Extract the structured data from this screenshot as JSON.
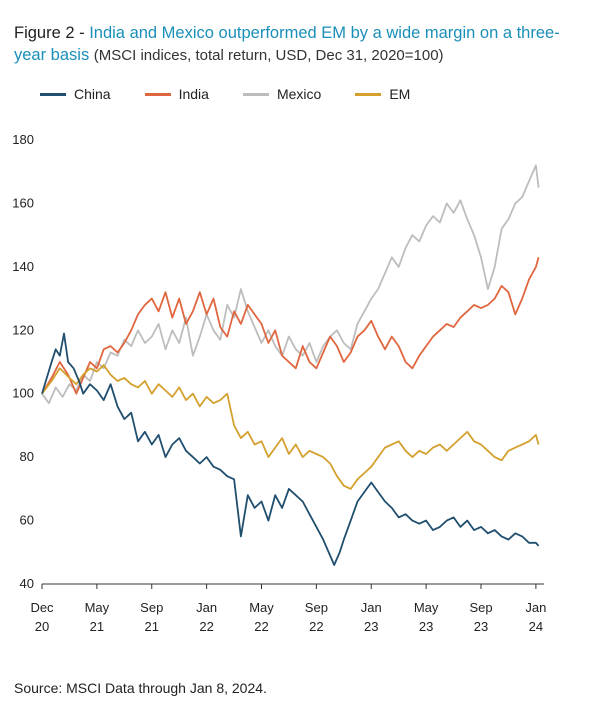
{
  "title": {
    "prefix": "Figure 2 - ",
    "main": "India and Mexico outperformed EM by a wide margin on a three-year basis",
    "subtitle": "(MSCI indices, total return, USD, Dec 31, 2020=100)"
  },
  "source": "Source: MSCI  Data through Jan 8, 2024.",
  "colors": {
    "China": "#1f4e6e",
    "India": "#e0663f",
    "Mexico": "#bdbdbd",
    "EM": "#d4a02e"
  },
  "chart_data": {
    "type": "line",
    "ylim": [
      40,
      180
    ],
    "yticks": [
      40,
      60,
      80,
      100,
      120,
      140,
      160,
      180
    ],
    "xlim": [
      0,
      36.3
    ],
    "xticks": [
      {
        "pos": 0,
        "label1": "Dec",
        "label2": "20"
      },
      {
        "pos": 4,
        "label1": "May",
        "label2": "21"
      },
      {
        "pos": 8,
        "label1": "Sep",
        "label2": "21"
      },
      {
        "pos": 12,
        "label1": "Jan",
        "label2": "22"
      },
      {
        "pos": 16,
        "label1": "May",
        "label2": "22"
      },
      {
        "pos": 20,
        "label1": "Sep",
        "label2": "22"
      },
      {
        "pos": 24,
        "label1": "Jan",
        "label2": "23"
      },
      {
        "pos": 28,
        "label1": "May",
        "label2": "23"
      },
      {
        "pos": 32,
        "label1": "Sep",
        "label2": "23"
      },
      {
        "pos": 36,
        "label1": "Jan",
        "label2": "24"
      }
    ],
    "legend_position": "top-left",
    "series": [
      {
        "name": "China",
        "x": [
          0,
          0.7,
          1,
          1.3,
          1.6,
          1.9,
          2.3,
          2.7,
          3,
          3.5,
          4,
          4.5,
          5,
          5.5,
          6,
          6.5,
          7,
          7.5,
          8,
          8.5,
          9,
          9.5,
          10,
          10.5,
          11,
          11.5,
          12,
          12.5,
          13,
          13.5,
          14,
          14.5,
          15,
          15.5,
          16,
          16.5,
          17,
          17.5,
          18,
          18.5,
          19,
          19.5,
          20,
          20.5,
          21,
          21.3,
          21.7,
          22,
          22.5,
          23,
          23.5,
          24,
          24.5,
          25,
          25.5,
          26,
          26.5,
          27,
          27.5,
          28,
          28.5,
          29,
          29.5,
          30,
          30.5,
          31,
          31.5,
          32,
          32.5,
          33,
          33.5,
          34,
          34.5,
          35,
          35.5,
          36,
          36.2
        ],
        "y": [
          100,
          110,
          114,
          112,
          119,
          110,
          108,
          104,
          100,
          103,
          101,
          98,
          103,
          96,
          92,
          94,
          85,
          88,
          84,
          87,
          80,
          84,
          86,
          82,
          80,
          78,
          80,
          77,
          76,
          74,
          73,
          55,
          68,
          64,
          66,
          60,
          68,
          64,
          70,
          68,
          66,
          62,
          58,
          54,
          49,
          46,
          50,
          54,
          60,
          66,
          69,
          72,
          69,
          66,
          64,
          61,
          62,
          60,
          59,
          60,
          57,
          58,
          60,
          61,
          58,
          60,
          57,
          58,
          56,
          57,
          55,
          54,
          56,
          55,
          53,
          53,
          52
        ]
      },
      {
        "name": "India",
        "x": [
          0,
          0.7,
          1.3,
          1.9,
          2.5,
          3,
          3.5,
          4,
          4.5,
          5,
          5.5,
          6,
          6.5,
          7,
          7.5,
          8,
          8.5,
          9,
          9.5,
          10,
          10.5,
          11,
          11.5,
          12,
          12.5,
          13,
          13.5,
          14,
          14.5,
          15,
          15.5,
          16,
          16.5,
          17,
          17.5,
          18,
          18.5,
          19,
          19.5,
          20,
          20.5,
          21,
          21.5,
          22,
          22.5,
          23,
          23.5,
          24,
          24.5,
          25,
          25.5,
          26,
          26.5,
          27,
          27.5,
          28,
          28.5,
          29,
          29.5,
          30,
          30.5,
          31,
          31.5,
          32,
          32.5,
          33,
          33.5,
          34,
          34.5,
          35,
          35.5,
          36,
          36.2
        ],
        "y": [
          100,
          105,
          110,
          106,
          100,
          105,
          110,
          108,
          114,
          115,
          113,
          116,
          120,
          125,
          128,
          130,
          126,
          132,
          124,
          130,
          122,
          126,
          132,
          125,
          130,
          121,
          118,
          126,
          122,
          128,
          125,
          122,
          116,
          120,
          112,
          110,
          108,
          115,
          110,
          108,
          113,
          118,
          115,
          110,
          113,
          118,
          120,
          123,
          118,
          114,
          118,
          115,
          110,
          108,
          112,
          115,
          118,
          120,
          122,
          121,
          124,
          126,
          128,
          127,
          128,
          130,
          134,
          132,
          125,
          130,
          136,
          140,
          143
        ]
      },
      {
        "name": "Mexico",
        "x": [
          0,
          0.5,
          1,
          1.5,
          2,
          2.5,
          3,
          3.5,
          4,
          4.5,
          5,
          5.5,
          6,
          6.5,
          7,
          7.5,
          8,
          8.5,
          9,
          9.5,
          10,
          10.5,
          11,
          11.5,
          12,
          12.5,
          13,
          13.5,
          14,
          14.5,
          15,
          15.5,
          16,
          16.5,
          17,
          17.5,
          18,
          18.5,
          19,
          19.5,
          20,
          20.5,
          21,
          21.5,
          22,
          22.5,
          23,
          23.5,
          24,
          24.5,
          25,
          25.5,
          26,
          26.5,
          27,
          27.5,
          28,
          28.5,
          29,
          29.5,
          30,
          30.5,
          31,
          31.5,
          32,
          32.5,
          33,
          33.5,
          34,
          34.5,
          35,
          35.5,
          36,
          36.2
        ],
        "y": [
          100,
          97,
          102,
          99,
          103,
          101,
          106,
          104,
          110,
          108,
          113,
          112,
          117,
          115,
          120,
          116,
          118,
          122,
          114,
          120,
          116,
          124,
          112,
          118,
          125,
          120,
          117,
          128,
          124,
          133,
          126,
          121,
          116,
          120,
          115,
          112,
          118,
          114,
          112,
          116,
          110,
          115,
          118,
          120,
          116,
          114,
          122,
          126,
          130,
          133,
          138,
          143,
          140,
          146,
          150,
          148,
          153,
          156,
          154,
          160,
          157,
          161,
          155,
          150,
          143,
          133,
          140,
          152,
          155,
          160,
          162,
          167,
          172,
          165
        ]
      },
      {
        "name": "EM",
        "x": [
          0,
          0.7,
          1.3,
          2,
          2.5,
          3,
          3.5,
          4,
          4.5,
          5,
          5.5,
          6,
          6.5,
          7,
          7.5,
          8,
          8.5,
          9,
          9.5,
          10,
          10.5,
          11,
          11.5,
          12,
          12.5,
          13,
          13.5,
          14,
          14.5,
          15,
          15.5,
          16,
          16.5,
          17,
          17.5,
          18,
          18.5,
          19,
          19.5,
          20,
          20.5,
          21,
          21.5,
          22,
          22.5,
          23,
          23.5,
          24,
          24.5,
          25,
          25.5,
          26,
          26.5,
          27,
          27.5,
          28,
          28.5,
          29,
          29.5,
          30,
          30.5,
          31,
          31.5,
          32,
          32.5,
          33,
          33.5,
          34,
          34.5,
          35,
          35.5,
          36,
          36.2
        ],
        "y": [
          100,
          104,
          108,
          105,
          103,
          106,
          108,
          107,
          109,
          106,
          104,
          105,
          103,
          102,
          104,
          100,
          103,
          101,
          99,
          102,
          98,
          100,
          96,
          99,
          97,
          98,
          100,
          90,
          86,
          88,
          84,
          85,
          80,
          83,
          86,
          81,
          84,
          80,
          82,
          81,
          80,
          78,
          74,
          71,
          70,
          73,
          75,
          77,
          80,
          83,
          84,
          85,
          82,
          80,
          82,
          81,
          83,
          84,
          82,
          84,
          86,
          88,
          85,
          84,
          82,
          80,
          79,
          82,
          83,
          84,
          85,
          87,
          84
        ]
      }
    ]
  }
}
